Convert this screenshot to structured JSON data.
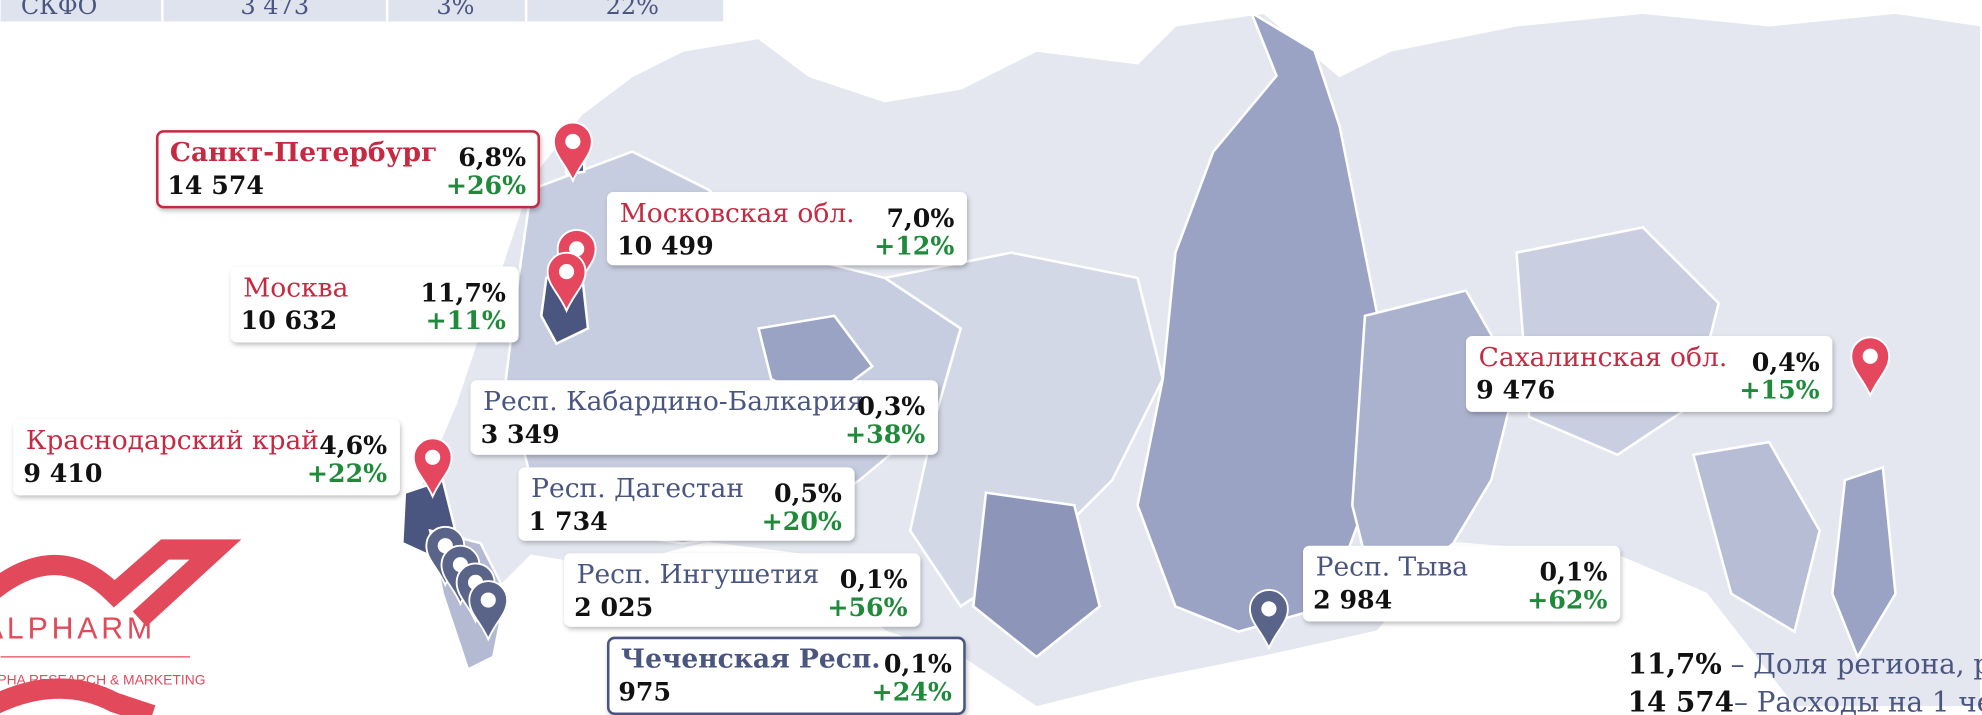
{
  "table": {
    "rows": [
      [
        "СКФО",
        "3 473",
        "3%",
        "22%"
      ]
    ]
  },
  "regions": [
    {
      "name": "Санкт-Петербург",
      "share": "6,8%",
      "spending": "14 574",
      "growth": "+26%"
    },
    {
      "name": "Московская обл.",
      "share": "7,0%",
      "spending": "10 499",
      "growth": "+12%"
    },
    {
      "name": "Москва",
      "share": "11,7%",
      "spending": "10 632",
      "growth": "+11%"
    },
    {
      "name": "Респ. Кабардино-Балкария",
      "share": "0,3%",
      "spending": "3 349",
      "growth": "+38%"
    },
    {
      "name": "Краснодарский край",
      "share": "4,6%",
      "spending": "9 410",
      "growth": "+22%"
    },
    {
      "name": "Респ. Дагестан",
      "share": "0,5%",
      "spending": "1 734",
      "growth": "+20%"
    },
    {
      "name": "Респ. Ингушетия",
      "share": "0,1%",
      "spending": "2 025",
      "growth": "+56%"
    },
    {
      "name": "Чеченская Респ.",
      "share": "0,1%",
      "spending": "975",
      "growth": "+24%"
    },
    {
      "name": "Сахалинская обл.",
      "share": "0,4%",
      "spending": "9 476",
      "growth": "+15%"
    },
    {
      "name": "Респ. Тыва",
      "share": "0,1%",
      "spending": "2 984",
      "growth": "+62%"
    }
  ],
  "legend": [
    {
      "value": "11,7%",
      "text": " – Доля региона, р"
    },
    {
      "value": "14 574",
      "text": "– Расходы на 1 че"
    }
  ],
  "logo": {
    "name": "ALPHARM",
    "tagline": "ALPHA RESEARCH & MARKETING"
  }
}
